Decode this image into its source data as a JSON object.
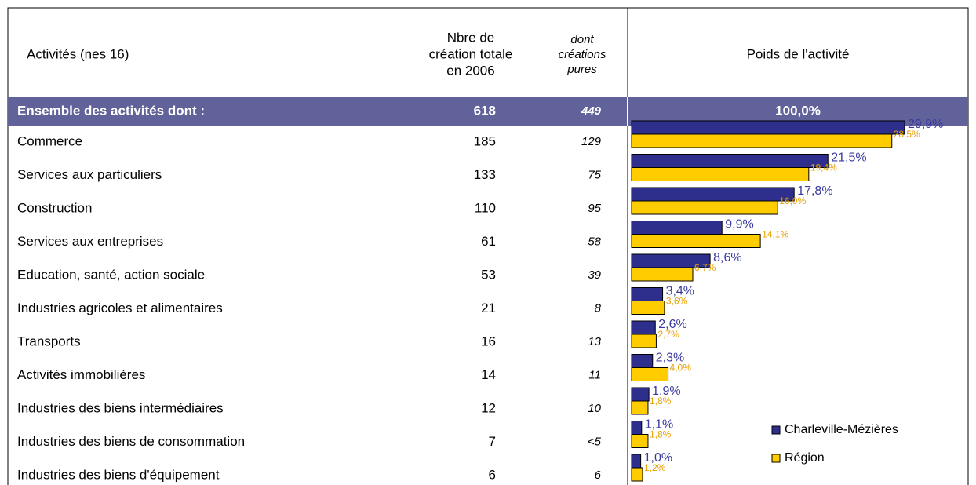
{
  "table": {
    "columns": [
      [
        "Activités (nes 16)"
      ],
      [
        "Nbre de",
        "création totale",
        "en 2006"
      ],
      [
        "dont",
        "créations",
        "pures"
      ],
      [
        "Poids de l'activité"
      ]
    ],
    "total": {
      "label": "Ensemble des activités dont :",
      "total": 618,
      "pures": 449,
      "weight": "100,0%"
    },
    "legend": [
      {
        "name": "Charleville-Mézières",
        "color": "#2e2e8c"
      },
      {
        "name": "Région",
        "color": "#ffcc00"
      }
    ],
    "rows": [
      {
        "label": "Commerce",
        "total": 185,
        "pures": 129,
        "city": 29.9,
        "city_label": "29,9%",
        "region": 28.5,
        "region_label": "28,5%"
      },
      {
        "label": "Services aux particuliers",
        "total": 133,
        "pures": 75,
        "city": 21.5,
        "city_label": "21,5%",
        "region": 19.4,
        "region_label": "19,4%"
      },
      {
        "label": "Construction",
        "total": 110,
        "pures": 95,
        "city": 17.8,
        "city_label": "17,8%",
        "region": 16.0,
        "region_label": "16,0%"
      },
      {
        "label": "Services aux entreprises",
        "total": 61,
        "pures": 58,
        "city": 9.9,
        "city_label": "9,9%",
        "region": 14.1,
        "region_label": "14,1%"
      },
      {
        "label": "Education, santé, action sociale",
        "total": 53,
        "pures": 39,
        "city": 8.6,
        "city_label": "8,6%",
        "region": 6.7,
        "region_label": "6,7%"
      },
      {
        "label": "Industries agricoles et alimentaires",
        "total": 21,
        "pures": 8,
        "city": 3.4,
        "city_label": "3,4%",
        "region": 3.6,
        "region_label": "3,6%"
      },
      {
        "label": "Transports",
        "total": 16,
        "pures": 13,
        "city": 2.6,
        "city_label": "2,6%",
        "region": 2.7,
        "region_label": "2,7%"
      },
      {
        "label": "Activités immobilières",
        "total": 14,
        "pures": 11,
        "city": 2.3,
        "city_label": "2,3%",
        "region": 4.0,
        "region_label": "4,0%"
      },
      {
        "label": "Industries des biens intermédiaires",
        "total": 12,
        "pures": 10,
        "city": 1.9,
        "city_label": "1,9%",
        "region": 1.8,
        "region_label": "1,8%"
      },
      {
        "label": "Industries des biens de consommation",
        "total": 7,
        "pures": "<5",
        "city": 1.1,
        "city_label": "1,1%",
        "region": 1.8,
        "region_label": "1,8%"
      },
      {
        "label": "Industries des biens d'équipement",
        "total": 6,
        "pures": 6,
        "city": 1.0,
        "city_label": "1,0%",
        "region": 1.2,
        "region_label": "1,2%"
      }
    ]
  }
}
